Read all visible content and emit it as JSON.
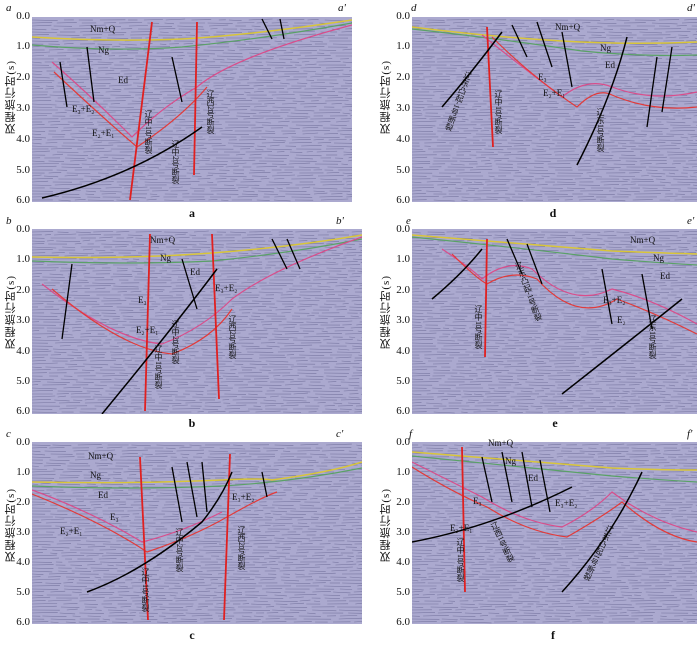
{
  "axis_title": "双程旅行时(s)",
  "ticks": [
    "0.0",
    "1.0",
    "2.0",
    "3.0",
    "4.0",
    "5.0",
    "6.0"
  ],
  "panels": [
    {
      "id": "a",
      "left": "a",
      "right": "a'",
      "caption": "a",
      "units": [
        "Nm+Q",
        "Ng",
        "Ed",
        "E₃+E₂",
        "E₂+E₁"
      ],
      "faults": [
        "辽中1号断裂",
        "辽中2号断裂",
        "辽西2号断裂"
      ]
    },
    {
      "id": "d",
      "left": "d",
      "right": "d'",
      "caption": "d",
      "units": [
        "Nm+Q",
        "Ng",
        "Ed",
        "E₃",
        "E₂+E₁"
      ],
      "faults": [
        "辽东凸起-1号断裂",
        "辽中1号断裂",
        "辽东1号断裂"
      ]
    },
    {
      "id": "b",
      "left": "b",
      "right": "b'",
      "caption": "b",
      "units": [
        "Nm+Q",
        "Ng",
        "Ed",
        "E₃",
        "E₂+E₁",
        "E₃+E₂"
      ],
      "faults": [
        "辽中1号断裂",
        "辽中2号断裂",
        "辽西2号断裂"
      ]
    },
    {
      "id": "e",
      "left": "e",
      "right": "e'",
      "caption": "e",
      "units": [
        "Nm+Q",
        "Ng",
        "Ed",
        "E₃+E₂",
        "E₂"
      ],
      "faults": [
        "辽中1号断裂",
        "辽东凸起-1号断裂",
        "辽东1号断裂"
      ]
    },
    {
      "id": "c",
      "left": "c",
      "right": "c'",
      "caption": "c",
      "units": [
        "Nm+Q",
        "Ng",
        "Ed",
        "E₃",
        "E₂+E₁",
        "E₃+E₂"
      ],
      "faults": [
        "辽中1号断裂",
        "辽中2号断裂",
        "辽西2号断裂"
      ]
    },
    {
      "id": "f",
      "left": "f",
      "right": "f'",
      "caption": "f",
      "units": [
        "Nm+Q",
        "Ng",
        "Ed",
        "E₃",
        "E₂+E₁",
        "E₃+E₂"
      ],
      "faults": [
        "辽中1号断裂",
        "辽西1号断裂",
        "辽东凸起1号断裂"
      ]
    }
  ]
}
